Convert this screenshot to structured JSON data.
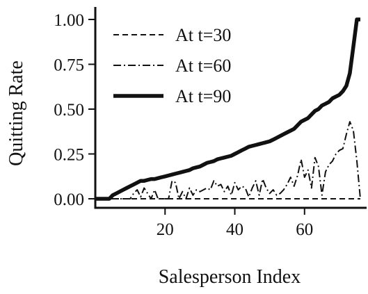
{
  "chart_data": {
    "type": "line",
    "xlabel": "Salesperson Index",
    "ylabel": "Quitting Rate",
    "xlim": [
      0,
      77
    ],
    "ylim": [
      0,
      1
    ],
    "x_ticks": [
      20,
      40,
      60
    ],
    "x_tick_labels": [
      "20",
      "40",
      "60"
    ],
    "y_ticks": [
      0,
      0.25,
      0.5,
      0.75,
      1.0
    ],
    "y_tick_labels": [
      "0.00",
      "0.25",
      "0.50",
      "0.75",
      "1.00"
    ],
    "grid": false,
    "legend_position": "top-left",
    "series": [
      {
        "name": "At t=30",
        "style": "dashed",
        "x": [
          0,
          76
        ],
        "values": [
          0,
          0
        ]
      },
      {
        "name": "At t=60",
        "style": "dashdot",
        "x": [
          0,
          10,
          11,
          12,
          13,
          14,
          15,
          16,
          17,
          18,
          19,
          20,
          21,
          22,
          23,
          24,
          25,
          26,
          27,
          28,
          29,
          30,
          31,
          32,
          33,
          34,
          35,
          36,
          37,
          38,
          39,
          40,
          41,
          42,
          43,
          44,
          45,
          46,
          47,
          48,
          49,
          50,
          51,
          52,
          53,
          54,
          55,
          56,
          57,
          58,
          59,
          60,
          61,
          62,
          63,
          64,
          65,
          66,
          67,
          68,
          69,
          70,
          71,
          72,
          73,
          74,
          75,
          76
        ],
        "values": [
          0,
          0,
          0.03,
          0.05,
          0.01,
          0.06,
          0.03,
          0,
          0.05,
          0,
          0,
          0,
          0,
          0.1,
          0.09,
          0,
          0.04,
          0,
          0.06,
          0.02,
          0.05,
          0.04,
          0.05,
          0.06,
          0.05,
          0.1,
          0.07,
          0.08,
          0.04,
          0.07,
          0.02,
          0.09,
          0.05,
          0.07,
          0.06,
          0.01,
          0.06,
          0.1,
          0.02,
          0.11,
          0.06,
          0.03,
          0.05,
          0.02,
          0.03,
          0.05,
          0.08,
          0.12,
          0.07,
          0.13,
          0.22,
          0.12,
          0.16,
          0.06,
          0.23,
          0.18,
          0.02,
          0.15,
          0.19,
          0.21,
          0.25,
          0.27,
          0.28,
          0.36,
          0.43,
          0.38,
          0.21,
          0
        ]
      },
      {
        "name": "At t=90",
        "style": "solid",
        "x": [
          0,
          4,
          5,
          6,
          7,
          8,
          9,
          10,
          11,
          12,
          13,
          14,
          15,
          16,
          17,
          18,
          19,
          20,
          21,
          22,
          23,
          24,
          25,
          26,
          27,
          28,
          29,
          30,
          31,
          32,
          33,
          34,
          35,
          36,
          37,
          38,
          39,
          40,
          41,
          42,
          43,
          44,
          45,
          46,
          47,
          48,
          49,
          50,
          51,
          52,
          53,
          54,
          55,
          56,
          57,
          58,
          59,
          60,
          61,
          62,
          63,
          64,
          65,
          66,
          67,
          68,
          69,
          70,
          71,
          72,
          73,
          74,
          75,
          76
        ],
        "values": [
          0,
          0,
          0.02,
          0.03,
          0.04,
          0.05,
          0.06,
          0.07,
          0.08,
          0.09,
          0.1,
          0.1,
          0.105,
          0.11,
          0.11,
          0.115,
          0.12,
          0.125,
          0.13,
          0.135,
          0.14,
          0.145,
          0.15,
          0.155,
          0.16,
          0.17,
          0.175,
          0.18,
          0.19,
          0.2,
          0.205,
          0.21,
          0.22,
          0.225,
          0.23,
          0.235,
          0.24,
          0.25,
          0.26,
          0.27,
          0.28,
          0.29,
          0.295,
          0.3,
          0.305,
          0.31,
          0.315,
          0.32,
          0.33,
          0.34,
          0.35,
          0.36,
          0.37,
          0.38,
          0.39,
          0.41,
          0.43,
          0.44,
          0.45,
          0.47,
          0.49,
          0.5,
          0.52,
          0.53,
          0.54,
          0.56,
          0.57,
          0.58,
          0.6,
          0.63,
          0.7,
          0.85,
          1.0,
          1.0
        ]
      }
    ]
  }
}
